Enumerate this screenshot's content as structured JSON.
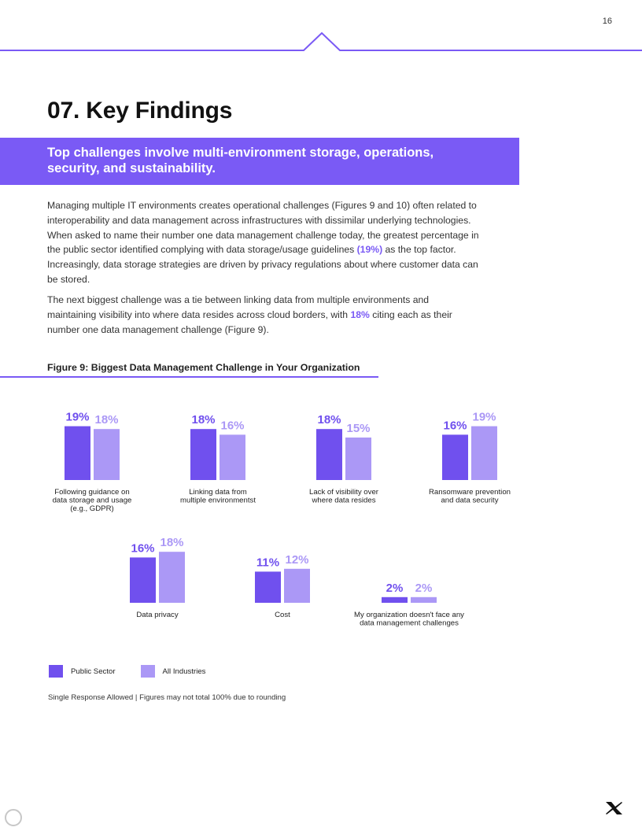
{
  "page": {
    "number": "16",
    "heading": "07. Key Findings",
    "banner": "Top challenges involve multi-environment storage, operations, security, and sustainability."
  },
  "body": {
    "p1_a": "Managing multiple IT environments creates operational challenges (Figures 9 and 10) often related to interoperability and data management across infrastructures with dissimilar underlying technologies. When asked to name their number one data management challenge today, the greatest percentage in the public sector identified complying with data storage/usage guidelines ",
    "p1_hl": "(19%)",
    "p1_b": " as the top factor. Increasingly, data storage strategies are driven by privacy regulations about where customer data can be stored.",
    "p2_a": "The next biggest challenge was a tie between linking data from multiple environments and maintaining visibility into where data resides across cloud borders, with ",
    "p2_hl": "18%",
    "p2_b": " citing each as their number one data management challenge (Figure 9)."
  },
  "figure": {
    "title": "Figure 9: Biggest Data Management Challenge in Your Organization",
    "footnote": "Single Response Allowed  |  Figures may not total 100% due to rounding"
  },
  "chart_data": {
    "type": "bar",
    "title": "Figure 9: Biggest Data Management Challenge in Your Organization",
    "categories": [
      [
        "Following guidance on",
        "data storage and usage",
        "(e.g., GDPR)"
      ],
      [
        "Linking data from",
        "multiple environmentst"
      ],
      [
        "Lack of visibility over",
        "where data resides"
      ],
      [
        "Ransomware prevention",
        "and data security"
      ],
      [
        "Data privacy"
      ],
      [
        "Cost"
      ],
      [
        "My organization doesn't face any",
        "data management challenges"
      ]
    ],
    "series": [
      {
        "name": "Public Sector",
        "values": [
          19,
          18,
          18,
          16,
          16,
          11,
          2
        ],
        "labels": [
          "19%",
          "18%",
          "18%",
          "16%",
          "16%",
          "11%",
          "2%"
        ]
      },
      {
        "name": "All Industries",
        "values": [
          18,
          16,
          15,
          19,
          18,
          12,
          2
        ],
        "labels": [
          "18%",
          "16%",
          "15%",
          "19%",
          "18%",
          "12%",
          "2%"
        ]
      }
    ],
    "unit": "%",
    "legend": "bottom-left",
    "grid": false,
    "colors": {
      "Public Sector": "#7050ee",
      "All Industries": "#ab98f6"
    }
  },
  "colors": {
    "accent": "#7a5af5"
  },
  "icons": {
    "logo": "x-logo-icon"
  }
}
